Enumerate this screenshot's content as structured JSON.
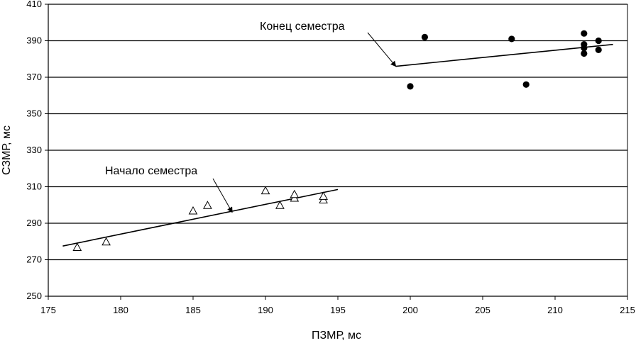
{
  "chart_data": {
    "type": "scatter",
    "title": "",
    "xlabel": "ПЗМР, мс",
    "ylabel": "СЗМР, мс",
    "xlim": [
      175,
      215
    ],
    "ylim": [
      250,
      410
    ],
    "xticks": [
      175,
      180,
      185,
      190,
      195,
      200,
      205,
      210,
      215
    ],
    "yticks": [
      250,
      270,
      290,
      310,
      330,
      350,
      370,
      390,
      410
    ],
    "grid": "horizontal",
    "series": [
      {
        "name": "Начало семестра",
        "marker": "open-triangle",
        "color": "#000000",
        "points": [
          [
            177,
            277
          ],
          [
            179,
            280
          ],
          [
            185,
            297
          ],
          [
            186,
            300
          ],
          [
            190,
            308
          ],
          [
            191,
            300
          ],
          [
            192,
            304
          ],
          [
            192,
            306
          ],
          [
            194,
            303
          ],
          [
            194,
            305
          ]
        ],
        "trendline": [
          [
            176,
            277.5
          ],
          [
            195,
            308.5
          ]
        ],
        "annotation": {
          "text": "Начало семестра",
          "arrow_to": [
            187.7,
            296
          ]
        }
      },
      {
        "name": "Конец семестра",
        "marker": "filled-circle",
        "color": "#000000",
        "points": [
          [
            200,
            365
          ],
          [
            201,
            392
          ],
          [
            207,
            391
          ],
          [
            208,
            366
          ],
          [
            212,
            394
          ],
          [
            212,
            388
          ],
          [
            212,
            386
          ],
          [
            212,
            383
          ],
          [
            213,
            390
          ],
          [
            213,
            385
          ]
        ],
        "trendline": [
          [
            199,
            376
          ],
          [
            214,
            388
          ]
        ],
        "annotation": {
          "text": "Конец семестра",
          "arrow_to": [
            199,
            376
          ]
        }
      }
    ]
  }
}
